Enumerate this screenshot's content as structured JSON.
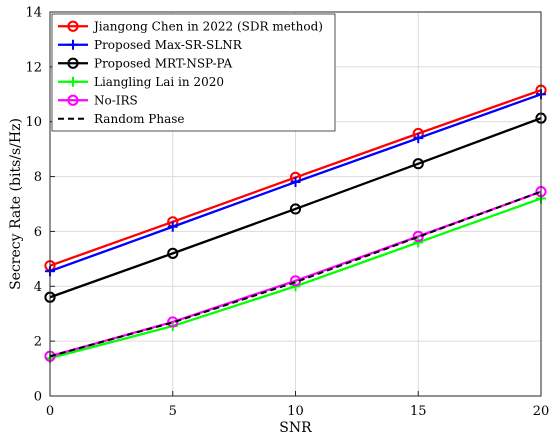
{
  "chart_data": {
    "type": "line",
    "title": "",
    "xlabel": "SNR",
    "ylabel": "Secrecy Rate (bits/s/Hz)",
    "xlim": [
      0,
      20
    ],
    "ylim": [
      0,
      14
    ],
    "xticks": [
      0,
      5,
      10,
      15,
      20
    ],
    "yticks": [
      0,
      2,
      4,
      6,
      8,
      10,
      12,
      14
    ],
    "grid": true,
    "legend_position": "top-left",
    "x": [
      0,
      5,
      10,
      15,
      20
    ],
    "series": [
      {
        "name": "Jiangong Chen in 2022 (SDR method)",
        "color": "#ff0000",
        "marker": "circle",
        "dash": "solid",
        "values": [
          4.75,
          6.35,
          7.97,
          9.57,
          11.15
        ]
      },
      {
        "name": "Proposed Max-SR-SLNR",
        "color": "#0000ff",
        "marker": "plus",
        "dash": "solid",
        "values": [
          4.55,
          6.17,
          7.8,
          9.4,
          11.0
        ]
      },
      {
        "name": "Proposed MRT-NSP-PA",
        "color": "#000000",
        "marker": "circle",
        "dash": "solid",
        "values": [
          3.6,
          5.2,
          6.82,
          8.47,
          10.13
        ]
      },
      {
        "name": "Liangling Lai in 2020",
        "color": "#00ff00",
        "marker": "plus",
        "dash": "solid",
        "values": [
          1.38,
          2.55,
          4.0,
          5.6,
          7.2
        ]
      },
      {
        "name": "No-IRS",
        "color": "#ff00ff",
        "marker": "circle",
        "dash": "solid",
        "values": [
          1.45,
          2.7,
          4.2,
          5.82,
          7.45
        ]
      },
      {
        "name": "Random Phase",
        "color": "#000000",
        "marker": "none",
        "dash": "dashed",
        "values": [
          1.45,
          2.68,
          4.15,
          5.8,
          7.45
        ]
      }
    ]
  }
}
